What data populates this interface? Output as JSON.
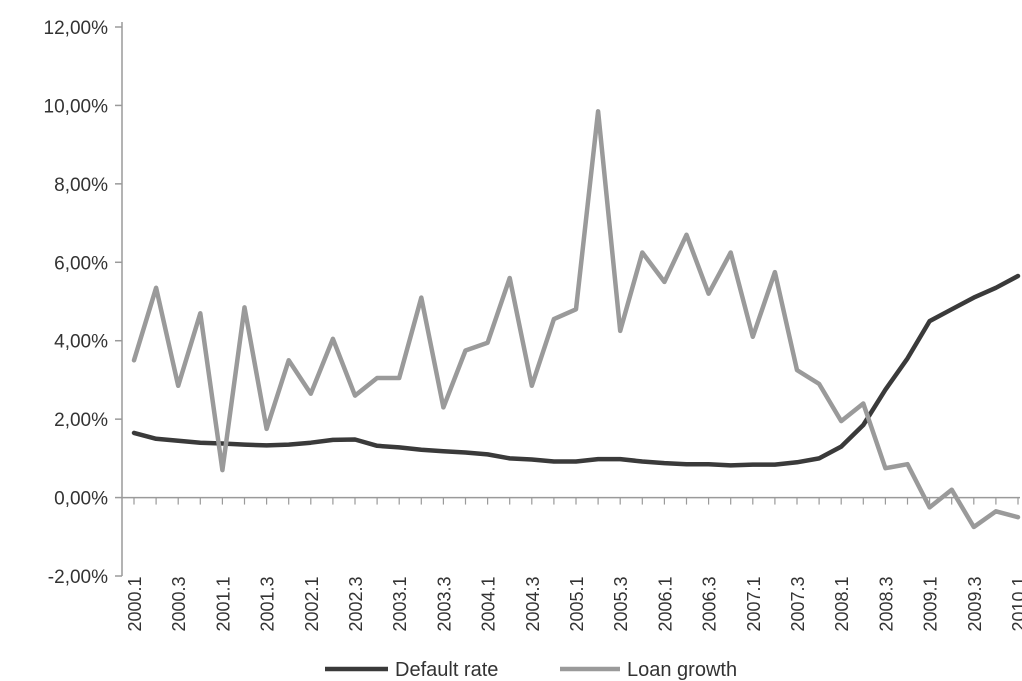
{
  "chart_data": {
    "type": "line",
    "title": "",
    "xlabel": "",
    "ylabel": "",
    "ylim": [
      -2,
      12
    ],
    "y_ticks": [
      "-2,00%",
      "0,00%",
      "2,00%",
      "4,00%",
      "6,00%",
      "8,00%",
      "10,00%",
      "12,00%"
    ],
    "x_tick_labels": [
      "2000.1",
      "2000.3",
      "2001.1",
      "2001.3",
      "2002.1",
      "2002.3",
      "2003.1",
      "2003.3",
      "2004.1",
      "2004.3",
      "2005.1",
      "2005.3",
      "2006.1",
      "2006.3",
      "2007.1",
      "2007.3",
      "2008.1",
      "2008.3",
      "2009.1",
      "2009.3",
      "2010.1"
    ],
    "x": [
      "2000.1",
      "2000.2",
      "2000.3",
      "2000.4",
      "2001.1",
      "2001.2",
      "2001.3",
      "2001.4",
      "2002.1",
      "2002.2",
      "2002.3",
      "2002.4",
      "2003.1",
      "2003.2",
      "2003.3",
      "2003.4",
      "2004.1",
      "2004.2",
      "2004.3",
      "2004.4",
      "2005.1",
      "2005.2",
      "2005.3",
      "2005.4",
      "2006.1",
      "2006.2",
      "2006.3",
      "2006.4",
      "2007.1",
      "2007.2",
      "2007.3",
      "2007.4",
      "2008.1",
      "2008.2",
      "2008.3",
      "2008.4",
      "2009.1",
      "2009.2",
      "2009.3",
      "2009.4",
      "2010.1"
    ],
    "grid": false,
    "legend_position": "bottom",
    "series": [
      {
        "name": "Default rate",
        "color": "#3a3a3a",
        "values": [
          1.65,
          1.5,
          1.45,
          1.4,
          1.38,
          1.35,
          1.33,
          1.35,
          1.4,
          1.47,
          1.48,
          1.32,
          1.28,
          1.22,
          1.18,
          1.15,
          1.1,
          1.0,
          0.97,
          0.92,
          0.92,
          0.98,
          0.98,
          0.92,
          0.88,
          0.85,
          0.85,
          0.82,
          0.84,
          0.84,
          0.9,
          1.0,
          1.3,
          1.85,
          2.75,
          3.55,
          4.5,
          4.8,
          5.1,
          5.35,
          5.65
        ]
      },
      {
        "name": "Loan growth",
        "color": "#9a9a9a",
        "values": [
          3.5,
          5.35,
          2.85,
          4.7,
          0.7,
          4.85,
          1.75,
          3.5,
          2.65,
          4.05,
          2.6,
          3.05,
          3.05,
          5.1,
          2.3,
          3.75,
          3.95,
          5.6,
          2.85,
          4.55,
          4.8,
          9.85,
          4.25,
          6.25,
          5.5,
          6.7,
          5.2,
          6.25,
          4.1,
          5.75,
          3.25,
          2.9,
          1.95,
          2.4,
          0.75,
          0.85,
          -0.25,
          0.2,
          -0.75,
          -0.35,
          -0.5
        ]
      }
    ]
  }
}
